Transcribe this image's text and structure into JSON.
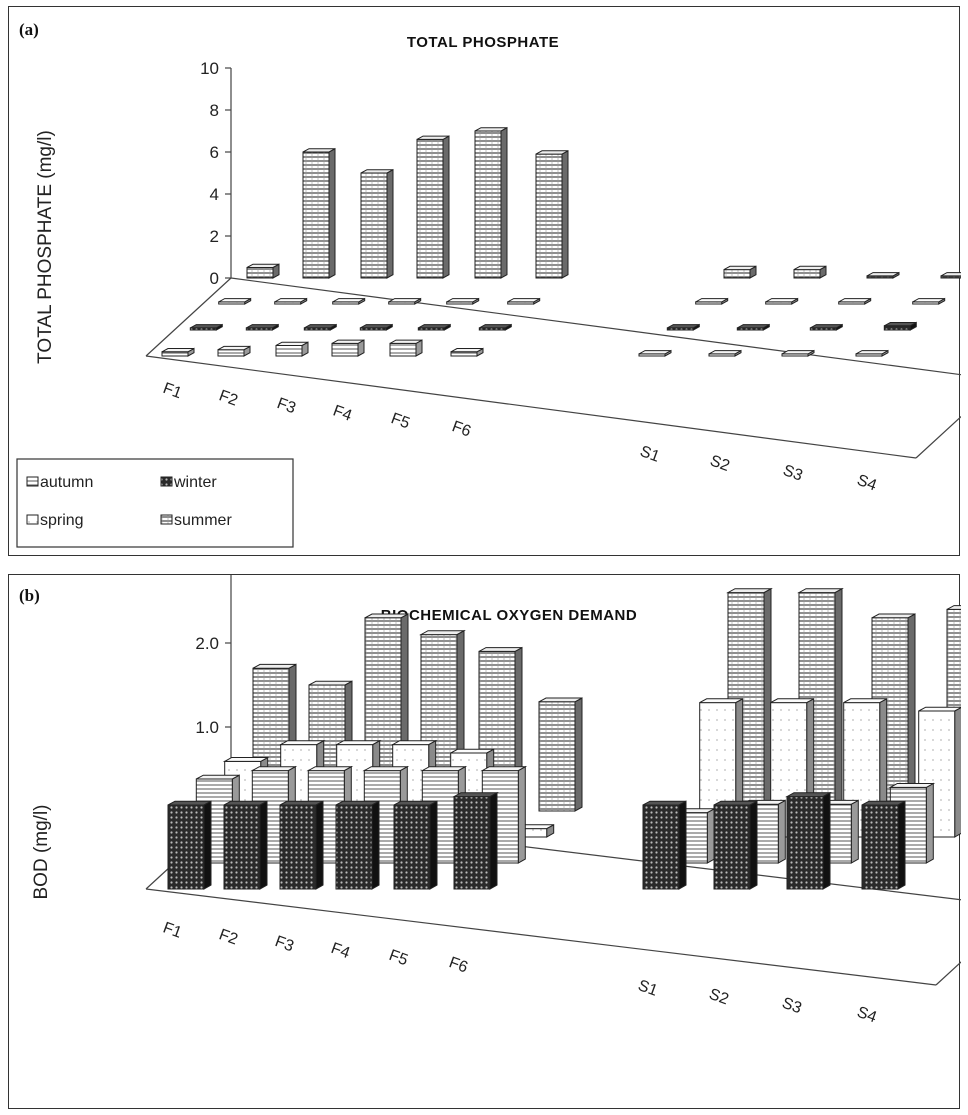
{
  "chart_data": [
    {
      "panel_label": "(a)",
      "type": "bar",
      "title": "TOTAL PHOSPHATE",
      "ylabel": "TOTAL PHOSPHATE  (mg/l)",
      "ylim": [
        0,
        10
      ],
      "yticks": [
        "0",
        "2",
        "4",
        "6",
        "8",
        "10"
      ],
      "categories": [
        "F1",
        "F2",
        "F3",
        "F4",
        "F5",
        "F6",
        "S1",
        "S2",
        "S3",
        "S4"
      ],
      "legend": {
        "position": "bottom-left",
        "entries": [
          {
            "name": "autumn",
            "key": "autumn"
          },
          {
            "name": "winter",
            "key": "winter"
          },
          {
            "name": "spring",
            "key": "spring"
          },
          {
            "name": "summer",
            "key": "summer"
          }
        ]
      },
      "series": [
        {
          "name": "autumn",
          "key": "autumn",
          "values": [
            0.2,
            0.3,
            0.5,
            0.6,
            0.6,
            0.2,
            0.1,
            0.1,
            0.1,
            0.1
          ]
        },
        {
          "name": "winter",
          "key": "winter",
          "values": [
            0.1,
            0.1,
            0.1,
            0.1,
            0.1,
            0.1,
            0.1,
            0.1,
            0.1,
            0.2
          ]
        },
        {
          "name": "spring",
          "key": "spring",
          "values": [
            0.1,
            0.1,
            0.1,
            0.1,
            0.1,
            0.1,
            0.1,
            0.1,
            0.1,
            0.1
          ]
        },
        {
          "name": "summer",
          "key": "summer",
          "values": [
            0.5,
            6.0,
            5.0,
            6.6,
            7.0,
            5.9,
            0.4,
            0.4,
            0.1,
            0.1
          ]
        }
      ]
    },
    {
      "panel_label": "(b)",
      "type": "bar",
      "title": "BIOCHEMICAL OXYGEN DEMAND",
      "ylabel": "BOD (mg/l)",
      "ylim": [
        0,
        3.0
      ],
      "yticks": [
        "0.0",
        "1.0",
        "2.0",
        "3.0"
      ],
      "categories": [
        "F1",
        "F2",
        "F3",
        "F4",
        "F5",
        "F6",
        "S1",
        "S2",
        "S3",
        "S4"
      ],
      "series": [
        {
          "name": "winter",
          "key": "winter",
          "values": [
            1.0,
            1.0,
            1.0,
            1.0,
            1.0,
            1.1,
            1.0,
            1.0,
            1.1,
            1.0
          ]
        },
        {
          "name": "autumn",
          "key": "autumn",
          "values": [
            1.0,
            1.1,
            1.1,
            1.1,
            1.1,
            1.1,
            0.6,
            0.7,
            0.7,
            0.9
          ]
        },
        {
          "name": "spring",
          "key": "spring",
          "values": [
            0.9,
            1.1,
            1.1,
            1.1,
            1.0,
            0.1,
            1.6,
            1.6,
            1.6,
            1.5
          ]
        },
        {
          "name": "summer",
          "key": "summer",
          "values": [
            1.7,
            1.5,
            2.3,
            2.1,
            1.9,
            1.3,
            2.6,
            2.6,
            2.3,
            2.4
          ]
        }
      ]
    }
  ]
}
